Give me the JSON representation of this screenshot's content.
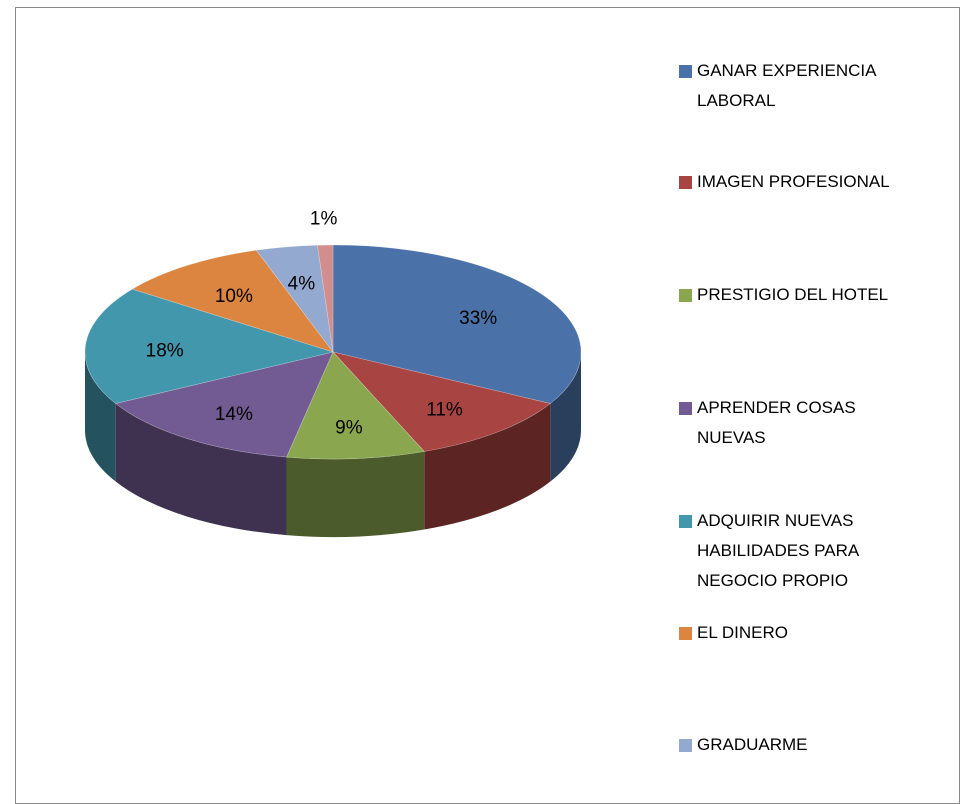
{
  "chart_data": {
    "type": "pie",
    "categories": [
      "GANAR EXPERIENCIA LABORAL",
      "IMAGEN PROFESIONAL",
      "PRESTIGIO DEL HOTEL",
      "APRENDER COSAS NUEVAS",
      "ADQUIRIR NUEVAS HABILIDADES PARA NEGOCIO PROPIO",
      "EL DINERO",
      "GRADUARME",
      null
    ],
    "values": [
      33,
      11,
      9,
      14,
      18,
      10,
      4,
      1
    ],
    "value_labels": [
      "33%",
      "11%",
      "9%",
      "14%",
      "18%",
      "10%",
      "4%",
      "1%"
    ],
    "colors": [
      "#4a72a8",
      "#a84442",
      "#8aa64e",
      "#725a92",
      "#4297ad",
      "#dc8541",
      "#93a9cf",
      "#d28d8d"
    ],
    "legend": "right"
  }
}
